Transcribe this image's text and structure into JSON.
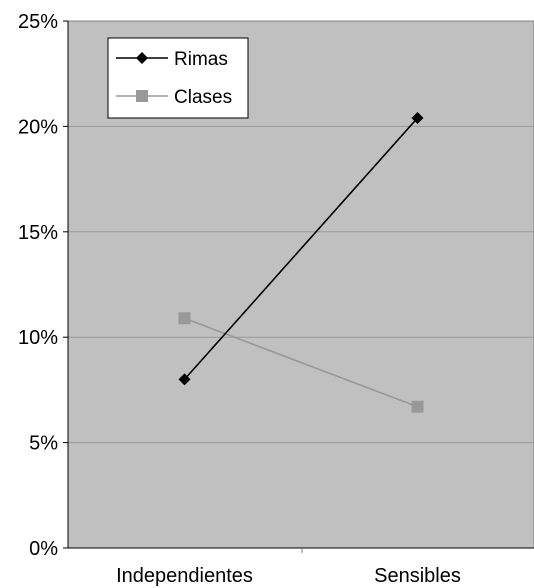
{
  "chart_data": {
    "type": "line",
    "categories": [
      "Independientes",
      "Sensibles"
    ],
    "series": [
      {
        "name": "Rimas",
        "values": [
          8.0,
          20.4
        ],
        "color": "#000000",
        "marker": "diamond"
      },
      {
        "name": "Clases",
        "values": [
          10.9,
          6.7
        ],
        "color": "#999999",
        "marker": "square"
      }
    ],
    "yticks": [
      "0%",
      "5%",
      "10%",
      "15%",
      "20%",
      "25%"
    ],
    "ylim": [
      0,
      25
    ],
    "grid": true,
    "legend": "top-left",
    "plot_background": "#c0c0c0",
    "gridline_color": "#999999"
  }
}
